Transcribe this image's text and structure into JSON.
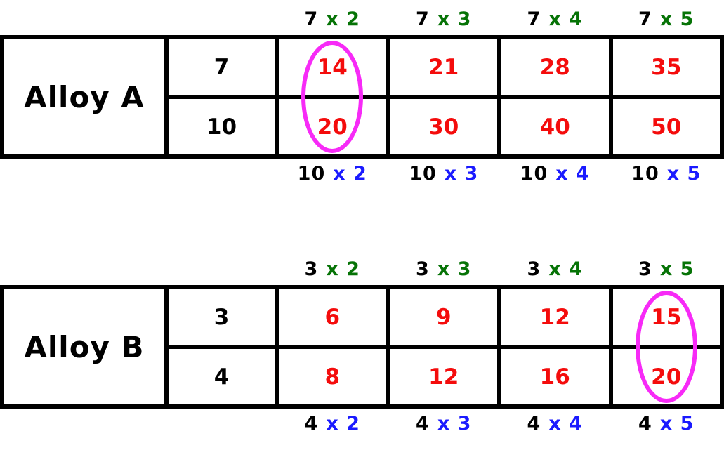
{
  "page": {
    "background": "#ffffff",
    "description": "Two ratio tables comparing alloys with multiplication scaling"
  },
  "colors": {
    "grid_lines": "#000000",
    "base_numbers": "#000000",
    "product_numbers": "#f40c0c",
    "top_multiplier": "#067306",
    "bottom_multiplier": "#1a1aff",
    "circle_annotation": "#f72af7"
  },
  "tables": [
    {
      "title": "Alloy A",
      "top_labels": [
        {
          "factor": "7",
          "mult": "x 2"
        },
        {
          "factor": "7",
          "mult": "x 3"
        },
        {
          "factor": "7",
          "mult": "x 4"
        },
        {
          "factor": "7",
          "mult": "x 5"
        }
      ],
      "row1": {
        "header": "7",
        "values": [
          "14",
          "21",
          "28",
          "35"
        ]
      },
      "row2": {
        "header": "10",
        "values": [
          "20",
          "30",
          "40",
          "50"
        ]
      },
      "bottom_labels": [
        {
          "factor": "10",
          "mult": "x 2"
        },
        {
          "factor": "10",
          "mult": "x 3"
        },
        {
          "factor": "10",
          "mult": "x 4"
        },
        {
          "factor": "10",
          "mult": "x 5"
        }
      ],
      "circled": {
        "product_column_index": 0,
        "values": [
          "14",
          "20"
        ]
      }
    },
    {
      "title": "Alloy B",
      "top_labels": [
        {
          "factor": "3",
          "mult": "x 2"
        },
        {
          "factor": "3",
          "mult": "x 3"
        },
        {
          "factor": "3",
          "mult": "x 4"
        },
        {
          "factor": "3",
          "mult": "x 5"
        }
      ],
      "row1": {
        "header": "3",
        "values": [
          "6",
          "9",
          "12",
          "15"
        ]
      },
      "row2": {
        "header": "4",
        "values": [
          "8",
          "12",
          "16",
          "20"
        ]
      },
      "bottom_labels": [
        {
          "factor": "4",
          "mult": "x 2"
        },
        {
          "factor": "4",
          "mult": "x 3"
        },
        {
          "factor": "4",
          "mult": "x 4"
        },
        {
          "factor": "4",
          "mult": "x 5"
        }
      ],
      "circled": {
        "product_column_index": 3,
        "values": [
          "15",
          "20"
        ]
      }
    }
  ]
}
